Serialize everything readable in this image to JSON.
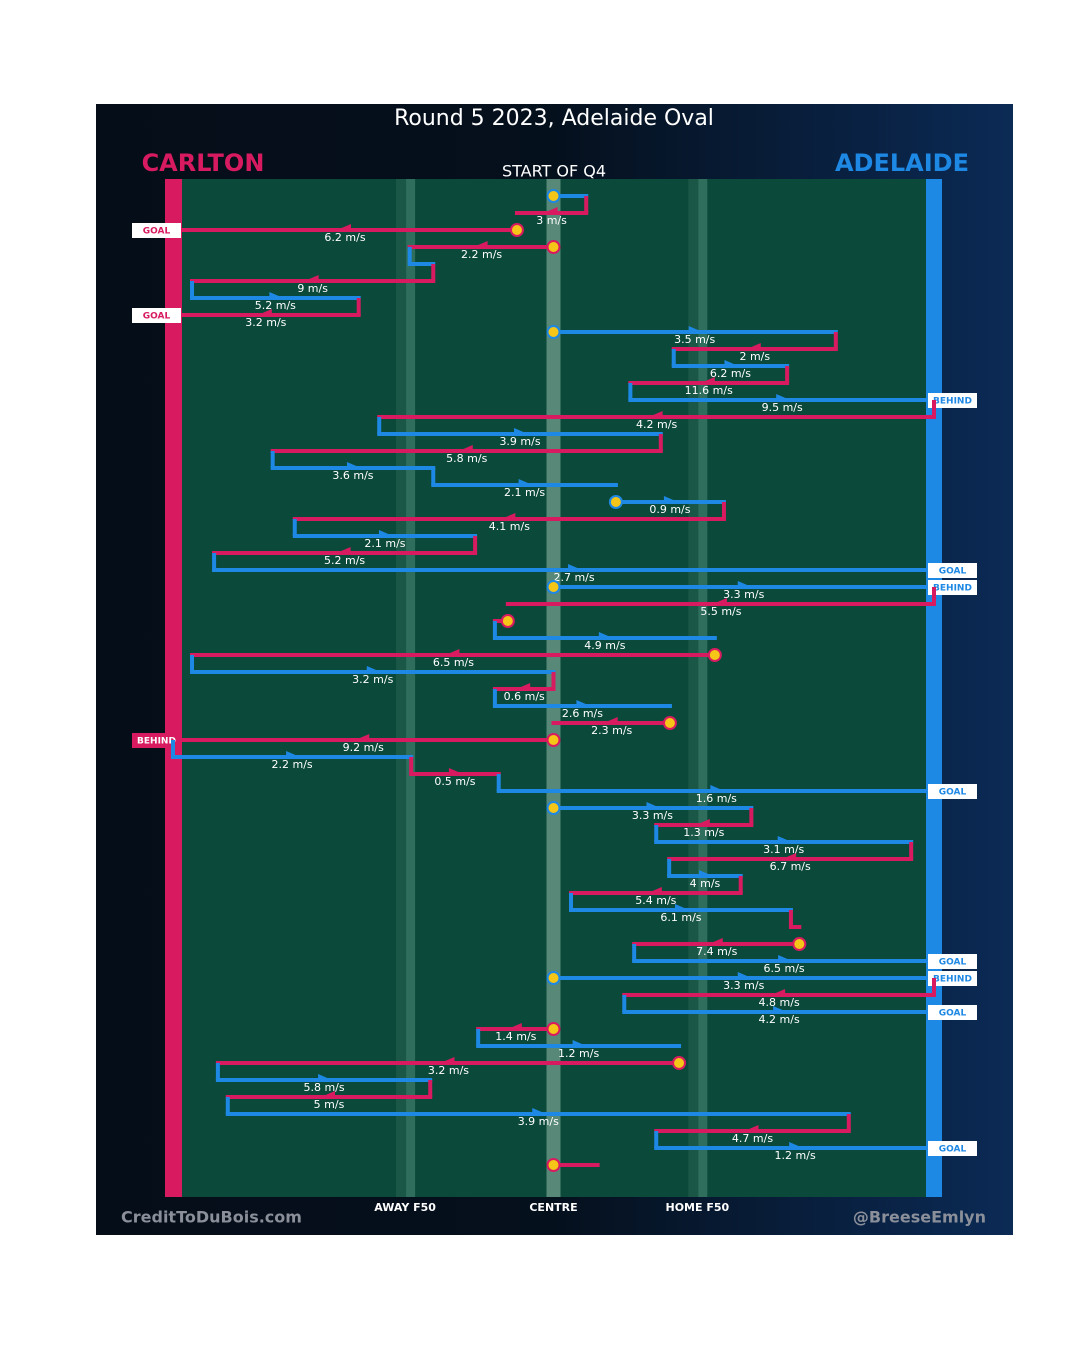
{
  "title": "Round 5 2023, Adelaide Oval",
  "teams": {
    "left": {
      "name": "CARLTON",
      "color": "#d81b60"
    },
    "right": {
      "name": "ADELAIDE",
      "color": "#1e88e5"
    }
  },
  "quarter_label": "START OF Q4",
  "xlim": [
    0,
    100
  ],
  "field_markers": [
    {
      "value": 30.5,
      "label": "AWAY F50"
    },
    {
      "value": 50,
      "label": "CENTRE"
    },
    {
      "value": 68.9,
      "label": "HOME F50"
    }
  ],
  "possessions": [
    {
      "team": "right",
      "from": 50,
      "to": 54.3,
      "stoppage": true
    },
    {
      "team": "left",
      "from": 54.3,
      "to": 45.2,
      "speed": {
        "value": 3,
        "label": "3 m/s"
      }
    },
    {
      "team": "left",
      "from": 45.2,
      "to": 0,
      "stoppage": true,
      "speed": {
        "value": 6.2,
        "label": "6.2 m/s"
      },
      "result": "GOAL"
    },
    {
      "team": "left",
      "from": 50,
      "to": 31.1,
      "stoppage": true,
      "speed": {
        "value": 2.2,
        "label": "2.2 m/s"
      }
    },
    {
      "team": "right",
      "from": 31.1,
      "to": 34.2
    },
    {
      "team": "left",
      "from": 34.2,
      "to": 2.5,
      "speed": {
        "value": 9,
        "label": "9 m/s"
      }
    },
    {
      "team": "right",
      "from": 2.5,
      "to": 24.4,
      "speed": {
        "value": 5.2,
        "label": "5.2 m/s"
      }
    },
    {
      "team": "left",
      "from": 24.4,
      "to": 0,
      "speed": {
        "value": 3.2,
        "label": "3.2 m/s"
      },
      "result": "GOAL"
    },
    {
      "team": "right",
      "from": 50,
      "to": 87.1,
      "stoppage": true,
      "speed": {
        "value": 3.5,
        "label": "3.5 m/s"
      }
    },
    {
      "team": "left",
      "from": 87.1,
      "to": 65.8,
      "speed": {
        "value": 2,
        "label": "2 m/s"
      }
    },
    {
      "team": "right",
      "from": 65.8,
      "to": 80.7,
      "speed": {
        "value": 6.2,
        "label": "6.2 m/s"
      }
    },
    {
      "team": "left",
      "from": 80.7,
      "to": 60.1,
      "speed": {
        "value": 11.6,
        "label": "11.6 m/s"
      }
    },
    {
      "team": "right",
      "from": 60.1,
      "to": 100,
      "speed": {
        "value": 9.5,
        "label": "9.5 m/s"
      },
      "result": "BEHIND"
    },
    {
      "team": "left",
      "from": 100,
      "to": 27.1,
      "speed": {
        "value": 4.2,
        "label": "4.2 m/s"
      }
    },
    {
      "team": "right",
      "from": 27.1,
      "to": 64.1,
      "speed": {
        "value": 3.9,
        "label": "3.9 m/s"
      }
    },
    {
      "team": "left",
      "from": 64.1,
      "to": 13.1,
      "speed": {
        "value": 5.8,
        "label": "5.8 m/s"
      }
    },
    {
      "team": "right",
      "from": 13.1,
      "to": 34.2,
      "speed": {
        "value": 3.6,
        "label": "3.6 m/s"
      }
    },
    {
      "team": "right",
      "from": 34.2,
      "to": 58.2,
      "speed": {
        "value": 2.1,
        "label": "2.1 m/s"
      }
    },
    {
      "team": "right",
      "from": 58.2,
      "to": 72.4,
      "stoppage": true,
      "speed": {
        "value": 0.9,
        "label": "0.9 m/s"
      }
    },
    {
      "team": "left",
      "from": 72.4,
      "to": 16.0,
      "speed": {
        "value": 4.1,
        "label": "4.1 m/s"
      }
    },
    {
      "team": "right",
      "from": 16.0,
      "to": 39.7,
      "speed": {
        "value": 2.1,
        "label": "2.1 m/s"
      }
    },
    {
      "team": "left",
      "from": 39.7,
      "to": 5.4,
      "speed": {
        "value": 5.2,
        "label": "5.2 m/s"
      }
    },
    {
      "team": "right",
      "from": 5.4,
      "to": 100,
      "speed": {
        "value": 2.7,
        "label": "2.7 m/s"
      },
      "result": "GOAL"
    },
    {
      "team": "right",
      "from": 50,
      "to": 100,
      "stoppage": true,
      "speed": {
        "value": 3.3,
        "label": "3.3 m/s"
      },
      "result": "BEHIND"
    },
    {
      "team": "left",
      "from": 100,
      "to": 44.0,
      "speed": {
        "value": 5.5,
        "label": "5.5 m/s"
      }
    },
    {
      "team": "left",
      "from": 44.0,
      "to": 42.3,
      "stoppage": true
    },
    {
      "team": "right",
      "from": 42.3,
      "to": 71.2,
      "speed": {
        "value": 4.9,
        "label": "4.9 m/s"
      }
    },
    {
      "team": "left",
      "from": 71.2,
      "to": 2.5,
      "stoppage": true,
      "speed": {
        "value": 6.5,
        "label": "6.5 m/s"
      }
    },
    {
      "team": "right",
      "from": 2.5,
      "to": 50,
      "speed": {
        "value": 3.2,
        "label": "3.2 m/s"
      }
    },
    {
      "team": "left",
      "from": 50,
      "to": 42.3,
      "speed": {
        "value": 0.6,
        "label": "0.6 m/s"
      }
    },
    {
      "team": "right",
      "from": 42.3,
      "to": 65.3,
      "speed": {
        "value": 2.6,
        "label": "2.6 m/s"
      }
    },
    {
      "team": "left",
      "from": 65.3,
      "to": 50,
      "stoppage": true,
      "speed": {
        "value": 2.3,
        "label": "2.3 m/s"
      }
    },
    {
      "team": "left",
      "from": 50,
      "to": 0,
      "stoppage": true,
      "speed": {
        "value": 9.2,
        "label": "9.2 m/s"
      },
      "result": "BEHIND"
    },
    {
      "team": "right",
      "from": 0,
      "to": 31.3,
      "speed": {
        "value": 2.2,
        "label": "2.2 m/s"
      }
    },
    {
      "team": "left",
      "from": 31.3,
      "to": 42.8,
      "speed": {
        "value": 0.5,
        "label": "0.5 m/s"
      }
    },
    {
      "team": "right",
      "from": 42.8,
      "to": 100,
      "speed": {
        "value": 1.6,
        "label": "1.6 m/s"
      },
      "result": "GOAL"
    },
    {
      "team": "right",
      "from": 50,
      "to": 76.0,
      "stoppage": true,
      "speed": {
        "value": 3.3,
        "label": "3.3 m/s"
      }
    },
    {
      "team": "left",
      "from": 76.0,
      "to": 63.5,
      "speed": {
        "value": 1.3,
        "label": "1.3 m/s"
      }
    },
    {
      "team": "right",
      "from": 63.5,
      "to": 97.0,
      "speed": {
        "value": 3.1,
        "label": "3.1 m/s"
      }
    },
    {
      "team": "left",
      "from": 97.0,
      "to": 65.2,
      "speed": {
        "value": 6.7,
        "label": "6.7 m/s"
      }
    },
    {
      "team": "right",
      "from": 65.2,
      "to": 74.6,
      "speed": {
        "value": 4,
        "label": "4 m/s"
      }
    },
    {
      "team": "left",
      "from": 74.6,
      "to": 52.3,
      "speed": {
        "value": 5.4,
        "label": "5.4 m/s"
      }
    },
    {
      "team": "right",
      "from": 52.3,
      "to": 81.2,
      "speed": {
        "value": 6.1,
        "label": "6.1 m/s"
      }
    },
    {
      "team": "left",
      "from": 81.2,
      "to": 82.3
    },
    {
      "team": "left",
      "from": 82.3,
      "to": 60.6,
      "stoppage": true,
      "speed": {
        "value": 7.4,
        "label": "7.4 m/s"
      }
    },
    {
      "team": "right",
      "from": 60.6,
      "to": 100,
      "speed": {
        "value": 6.5,
        "label": "6.5 m/s"
      },
      "result": "GOAL"
    },
    {
      "team": "right",
      "from": 50,
      "to": 100,
      "stoppage": true,
      "speed": {
        "value": 3.3,
        "label": "3.3 m/s"
      },
      "result": "BEHIND"
    },
    {
      "team": "left",
      "from": 100,
      "to": 59.3,
      "speed": {
        "value": 4.8,
        "label": "4.8 m/s"
      }
    },
    {
      "team": "right",
      "from": 59.3,
      "to": 100,
      "speed": {
        "value": 4.2,
        "label": "4.2 m/s"
      },
      "result": "GOAL"
    },
    {
      "team": "left",
      "from": 50,
      "to": 40.1,
      "stoppage": true,
      "speed": {
        "value": 1.4,
        "label": "1.4 m/s"
      }
    },
    {
      "team": "right",
      "from": 40.1,
      "to": 66.5,
      "speed": {
        "value": 1.2,
        "label": "1.2 m/s"
      }
    },
    {
      "team": "left",
      "from": 66.5,
      "to": 5.9,
      "stoppage": true,
      "speed": {
        "value": 3.2,
        "label": "3.2 m/s"
      }
    },
    {
      "team": "right",
      "from": 5.9,
      "to": 33.8,
      "speed": {
        "value": 5.8,
        "label": "5.8 m/s"
      }
    },
    {
      "team": "left",
      "from": 33.8,
      "to": 7.2,
      "speed": {
        "value": 5,
        "label": "5 m/s"
      }
    },
    {
      "team": "right",
      "from": 7.2,
      "to": 88.8,
      "speed": {
        "value": 3.9,
        "label": "3.9 m/s"
      }
    },
    {
      "team": "left",
      "from": 88.8,
      "to": 63.5,
      "speed": {
        "value": 4.7,
        "label": "4.7 m/s"
      }
    },
    {
      "team": "right",
      "from": 63.5,
      "to": 100,
      "speed": {
        "value": 1.2,
        "label": "1.2 m/s"
      },
      "result": "GOAL"
    },
    {
      "team": "left",
      "from": 50,
      "to": 55.8,
      "stoppage": true
    }
  ],
  "credits": {
    "left": "CreditToDuBois.com",
    "right": "@BreeseEmlyn"
  }
}
